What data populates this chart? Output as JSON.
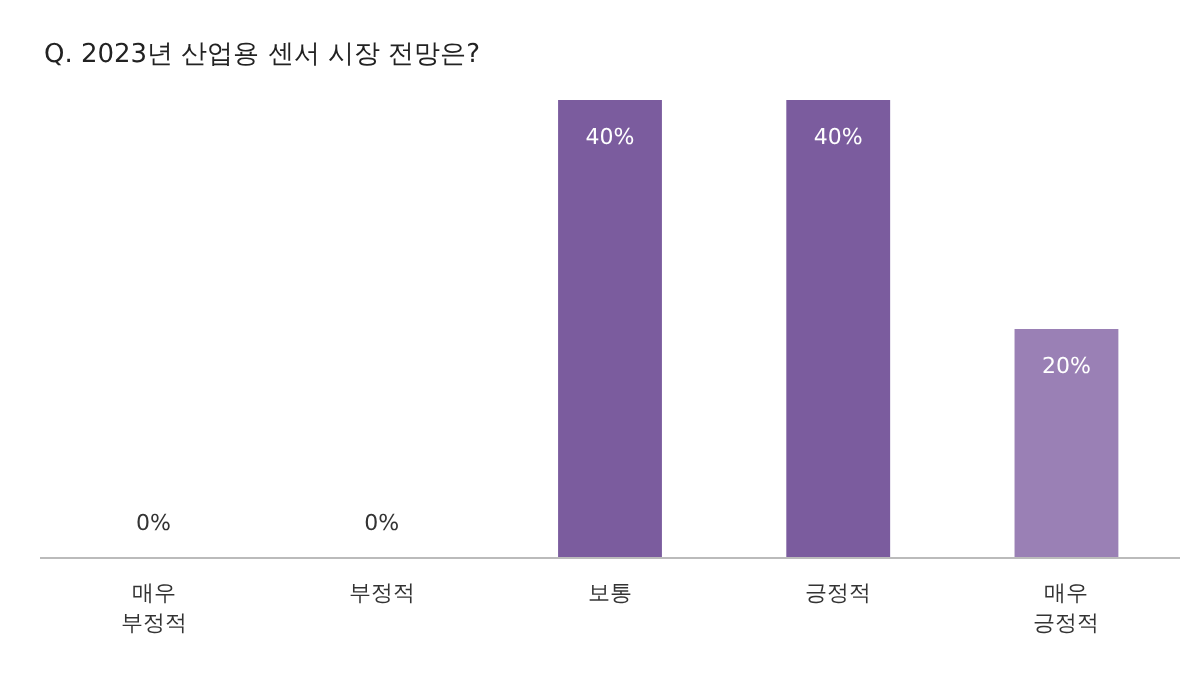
{
  "chart_data": {
    "type": "bar",
    "title": "Q. 2023년 산업용 센서 시장 전망은?",
    "categories": [
      "매우 부정적",
      "부정적",
      "보통",
      "긍정적",
      "매우 긍정적"
    ],
    "values": [
      0,
      0,
      40,
      40,
      20
    ],
    "colors": [
      "#7b5c9e",
      "#7b5c9e",
      "#7b5c9e",
      "#7b5c9e",
      "#9a80b5"
    ],
    "value_labels": [
      "0%",
      "0%",
      "40%",
      "40%",
      "20%"
    ]
  }
}
